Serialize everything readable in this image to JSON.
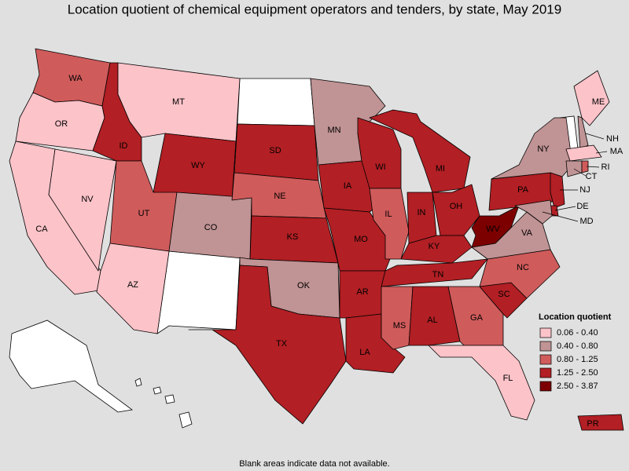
{
  "title": "Location quotient of chemical equipment operators and tenders, by state, May 2019",
  "note": "Blank areas indicate data not available.",
  "legend": {
    "title": "Location quotient",
    "classes": [
      {
        "label": "0.06 - 0.40",
        "color": "#fcc3c9"
      },
      {
        "label": "0.40 - 0.80",
        "color": "#c09394"
      },
      {
        "label": "0.80 - 1.25",
        "color": "#d05b5b"
      },
      {
        "label": "1.25 - 2.50",
        "color": "#b21f24"
      },
      {
        "label": "2.50 - 3.87",
        "color": "#7d0000"
      }
    ]
  },
  "states": [
    {
      "label": "WA",
      "class": 2
    },
    {
      "label": "OR",
      "class": 0
    },
    {
      "label": "CA",
      "class": 0
    },
    {
      "label": "NV",
      "class": 0
    },
    {
      "label": "ID",
      "class": 3
    },
    {
      "label": "MT",
      "class": 0
    },
    {
      "label": "WY",
      "class": 3
    },
    {
      "label": "UT",
      "class": 2
    },
    {
      "label": "CO",
      "class": 1
    },
    {
      "label": "AZ",
      "class": 0
    },
    {
      "label": "SD",
      "class": 3
    },
    {
      "label": "NE",
      "class": 2
    },
    {
      "label": "KS",
      "class": 3
    },
    {
      "label": "OK",
      "class": 1
    },
    {
      "label": "TX",
      "class": 3
    },
    {
      "label": "MN",
      "class": 1
    },
    {
      "label": "IA",
      "class": 3
    },
    {
      "label": "MO",
      "class": 3
    },
    {
      "label": "AR",
      "class": 3
    },
    {
      "label": "LA",
      "class": 3
    },
    {
      "label": "WI",
      "class": 3
    },
    {
      "label": "IL",
      "class": 2
    },
    {
      "label": "MI",
      "class": 3
    },
    {
      "label": "IN",
      "class": 3
    },
    {
      "label": "OH",
      "class": 3
    },
    {
      "label": "KY",
      "class": 3
    },
    {
      "label": "TN",
      "class": 3
    },
    {
      "label": "MS",
      "class": 2
    },
    {
      "label": "AL",
      "class": 3
    },
    {
      "label": "GA",
      "class": 2
    },
    {
      "label": "FL",
      "class": 0
    },
    {
      "label": "SC",
      "class": 3
    },
    {
      "label": "NC",
      "class": 2
    },
    {
      "label": "VA",
      "class": 1
    },
    {
      "label": "WV",
      "class": 4
    },
    {
      "label": "PA",
      "class": 3
    },
    {
      "label": "NY",
      "class": 1
    },
    {
      "label": "ME",
      "class": 0
    },
    {
      "label": "NH",
      "class": 1
    },
    {
      "label": "MA",
      "class": 0
    },
    {
      "label": "CT",
      "class": 1
    },
    {
      "label": "RI",
      "class": 2
    },
    {
      "label": "NJ",
      "class": 3
    },
    {
      "label": "DE",
      "class": 3
    },
    {
      "label": "MD",
      "class": 1
    },
    {
      "label": "PR",
      "class": 3
    }
  ]
}
